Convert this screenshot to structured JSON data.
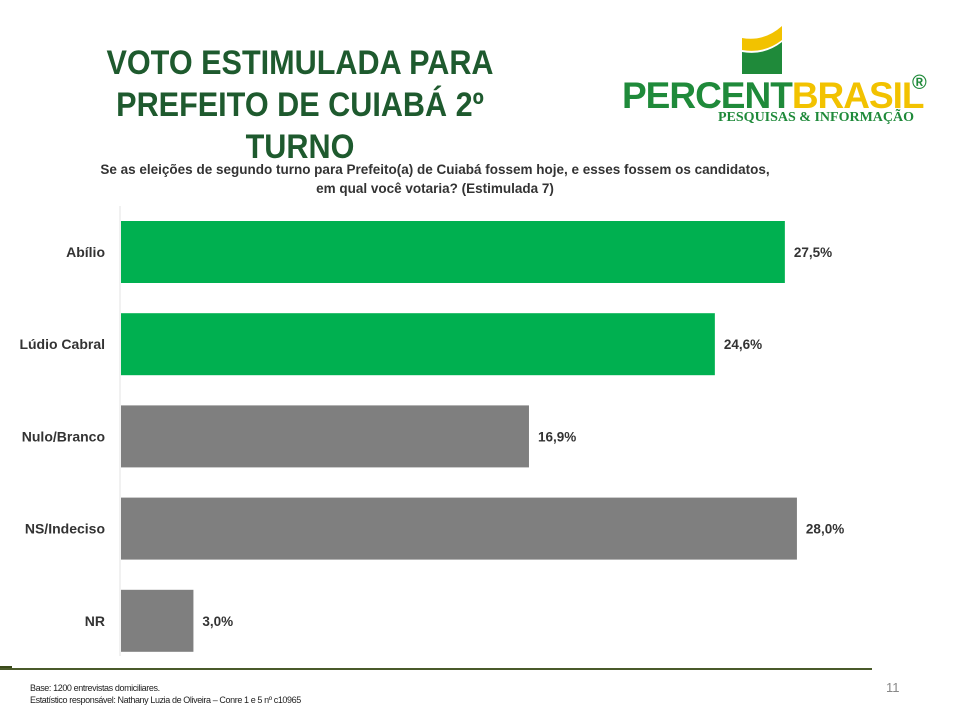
{
  "header": {
    "title_line1": "VOTO ESTIMULADA PARA",
    "title_line2": "PREFEITO DE  CUIABÁ 2º TURNO"
  },
  "logo": {
    "name_part1": "PERCENT",
    "name_part2": "BRASIL",
    "registered": "®",
    "tagline": "PESQUISAS & INFORMAÇÃO"
  },
  "question": "Se as eleições de segundo turno para Prefeito(a) de Cuiabá fossem hoje, e esses fossem os candidatos, em qual você votaria? (Estimulada 7)",
  "chart_data": {
    "type": "bar",
    "orientation": "horizontal",
    "categories": [
      "Abílio",
      "Lúdio Cabral",
      "Nulo/Branco",
      "NS/Indeciso",
      "NR"
    ],
    "values": [
      27.5,
      24.6,
      16.9,
      28.0,
      3.0
    ],
    "value_labels": [
      "27,5%",
      "24,6%",
      "16,9%",
      "28,0%",
      "3,0%"
    ],
    "colors": [
      "#00b050",
      "#00b050",
      "#7f7f7f",
      "#7f7f7f",
      "#7f7f7f"
    ],
    "xlim": [
      0,
      28.5
    ],
    "grid": false,
    "legend": "none"
  },
  "footer": {
    "base": "Base: 1200 entrevistas domiciliares.",
    "responsible": "Estatístico responsável: Nathany Luzia de Oliveira – Conre 1 e 5 nº c10965",
    "page_number": "11"
  },
  "colors": {
    "title": "#1e5a2e",
    "candidate_bar": "#00b050",
    "other_bar": "#7f7f7f",
    "rule": "#4a5a2a"
  }
}
